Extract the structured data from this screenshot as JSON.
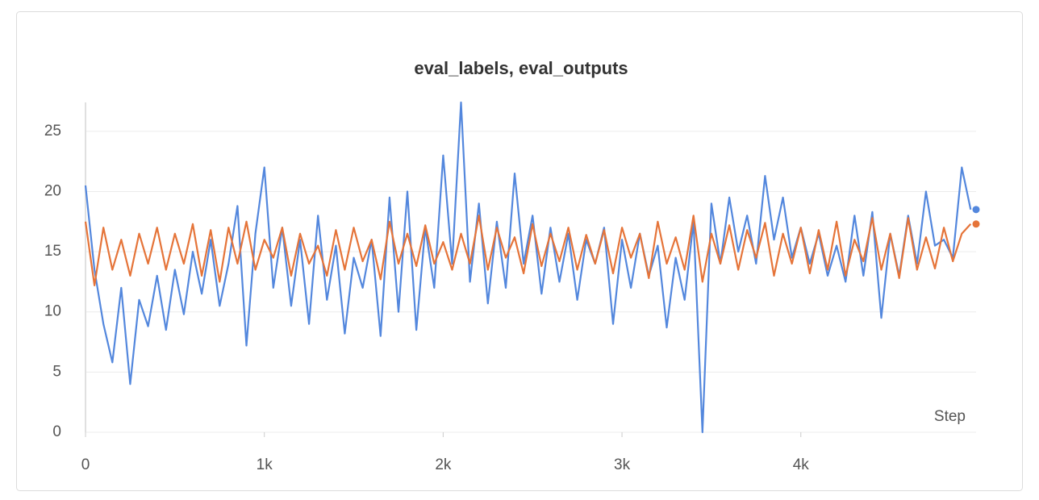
{
  "chart_data": {
    "type": "line",
    "title": "eval_labels, eval_outputs",
    "xlabel": "Step",
    "x": [
      0,
      50,
      100,
      150,
      200,
      250,
      300,
      350,
      400,
      450,
      500,
      550,
      600,
      650,
      700,
      750,
      800,
      850,
      900,
      950,
      1000,
      1050,
      1100,
      1150,
      1200,
      1250,
      1300,
      1350,
      1400,
      1450,
      1500,
      1550,
      1600,
      1650,
      1700,
      1750,
      1800,
      1850,
      1900,
      1950,
      2000,
      2050,
      2100,
      2150,
      2200,
      2250,
      2300,
      2350,
      2400,
      2450,
      2500,
      2550,
      2600,
      2650,
      2700,
      2750,
      2800,
      2850,
      2900,
      2950,
      3000,
      3050,
      3100,
      3150,
      3200,
      3250,
      3300,
      3350,
      3400,
      3450,
      3500,
      3550,
      3600,
      3650,
      3700,
      3750,
      3800,
      3850,
      3900,
      3950,
      4000,
      4050,
      4100,
      4150,
      4200,
      4250,
      4300,
      4350,
      4400,
      4450,
      4500,
      4550,
      4600,
      4650,
      4700,
      4750,
      4800,
      4850,
      4900,
      4950
    ],
    "series": [
      {
        "color": "#5387dd",
        "values": [
          20.5,
          13.5,
          9,
          5.8,
          12,
          4,
          11,
          8.8,
          13,
          8.5,
          13.5,
          9.8,
          15,
          11.5,
          16,
          10.5,
          14,
          18.8,
          7.2,
          16.5,
          22,
          12,
          17,
          10.5,
          16,
          9,
          18,
          11,
          15.5,
          8.2,
          14.5,
          12,
          16,
          8,
          19.5,
          10,
          20,
          8.5,
          17,
          12,
          23,
          14,
          27.4,
          12.5,
          19,
          10.7,
          17.5,
          12,
          21.5,
          14,
          18,
          11.5,
          17,
          12.5,
          16.5,
          11,
          16,
          14,
          17,
          9,
          16,
          12,
          16.5,
          13,
          15.5,
          8.7,
          14.5,
          11,
          17.5,
          0,
          19,
          14,
          19.5,
          15,
          18,
          14,
          21.3,
          16,
          19.5,
          14.5,
          17,
          14,
          16.5,
          13,
          15.5,
          12.5,
          18,
          13,
          18.3,
          9.5,
          16.5,
          13,
          18,
          14,
          20,
          15.5,
          16,
          14.5,
          22,
          18.5
        ]
      },
      {
        "color": "#e57439",
        "values": [
          17.5,
          12.2,
          17,
          13.5,
          16,
          13,
          16.5,
          14,
          17,
          13.5,
          16.5,
          14,
          17.3,
          13,
          16.8,
          12.5,
          17,
          14,
          17.5,
          13.5,
          16,
          14.5,
          17,
          13,
          16.5,
          14,
          15.5,
          13,
          16.8,
          13.5,
          17,
          14.2,
          16,
          12.7,
          17.5,
          14,
          16.5,
          13.8,
          17.2,
          14,
          15.8,
          13.5,
          16.5,
          14,
          18,
          13.5,
          17,
          14.5,
          16.2,
          13.2,
          17.3,
          13.8,
          16.5,
          14.2,
          17,
          13.5,
          16.4,
          14,
          16.8,
          13.2,
          17,
          14.5,
          16.5,
          12.8,
          17.5,
          14,
          16.2,
          13.5,
          18,
          12.5,
          16.5,
          14,
          17.2,
          13.5,
          16.8,
          14.5,
          17.4,
          13,
          16.5,
          14,
          17,
          13.2,
          16.8,
          13.5,
          17.5,
          13,
          16,
          14.2,
          17.8,
          13.5,
          16.5,
          12.8,
          17.8,
          13.5,
          16.2,
          13.6,
          17,
          14.2,
          16.5,
          17.3
        ]
      }
    ],
    "xlim": [
      0,
      4980
    ],
    "ylim": [
      0,
      27.4
    ],
    "xticks": [
      0,
      {
        "value": 1000,
        "label": "1k"
      },
      {
        "value": 2000,
        "label": "2k"
      },
      {
        "value": 3000,
        "label": "3k"
      },
      {
        "value": 4000,
        "label": "4k"
      }
    ],
    "yticks": [
      0,
      5,
      10,
      15,
      20,
      25
    ],
    "grid": true
  }
}
